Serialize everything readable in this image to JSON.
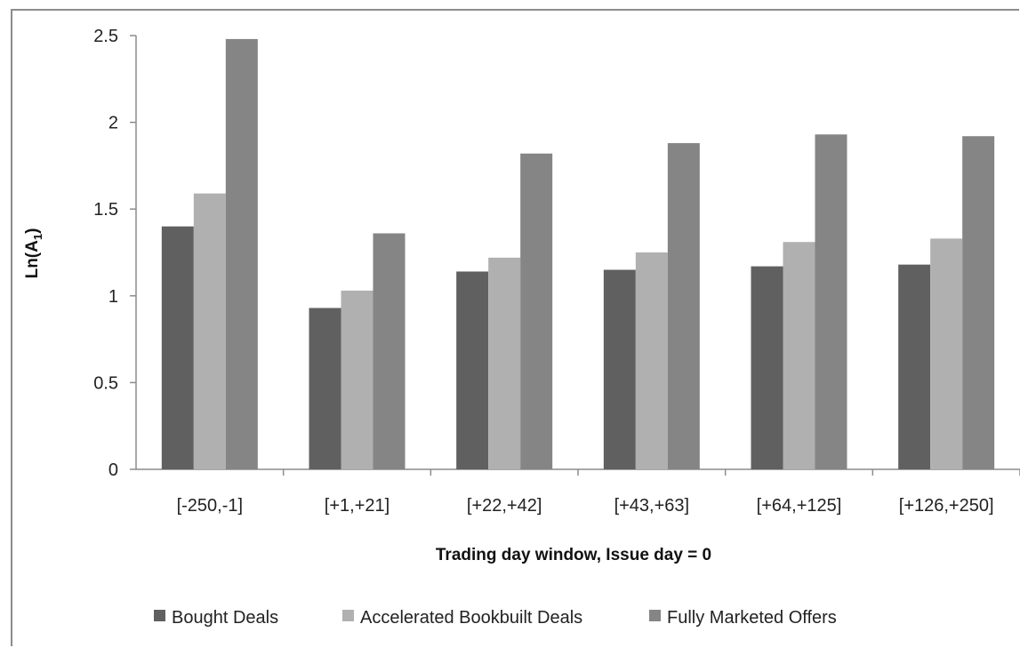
{
  "chart_data": {
    "type": "bar",
    "categories": [
      "[-250,-1]",
      "[+1,+21]",
      "[+22,+42]",
      "[+43,+63]",
      "[+64,+125]",
      "[+126,+250]"
    ],
    "series": [
      {
        "name": "Bought Deals",
        "color": "#606060",
        "values": [
          1.4,
          0.93,
          1.14,
          1.15,
          1.17,
          1.18
        ]
      },
      {
        "name": "Accelerated Bookbuilt Deals",
        "color": "#b0b0b0",
        "values": [
          1.59,
          1.03,
          1.22,
          1.25,
          1.31,
          1.33
        ]
      },
      {
        "name": "Fully Marketed Offers",
        "color": "#858585",
        "values": [
          2.48,
          1.36,
          1.82,
          1.88,
          1.93,
          1.92
        ]
      }
    ],
    "ylim": [
      0,
      2.5
    ],
    "yticks": [
      "0",
      "0.5",
      "1",
      "1.5",
      "2",
      "2.5"
    ],
    "ytick_values": [
      0,
      0.5,
      1,
      1.5,
      2,
      2.5
    ],
    "xlabel": "Trading day window, Issue day = 0",
    "ylabel_main": "Ln(A",
    "ylabel_sub": "1",
    "ylabel_close": ")",
    "grid": false,
    "legend_position": "bottom"
  }
}
